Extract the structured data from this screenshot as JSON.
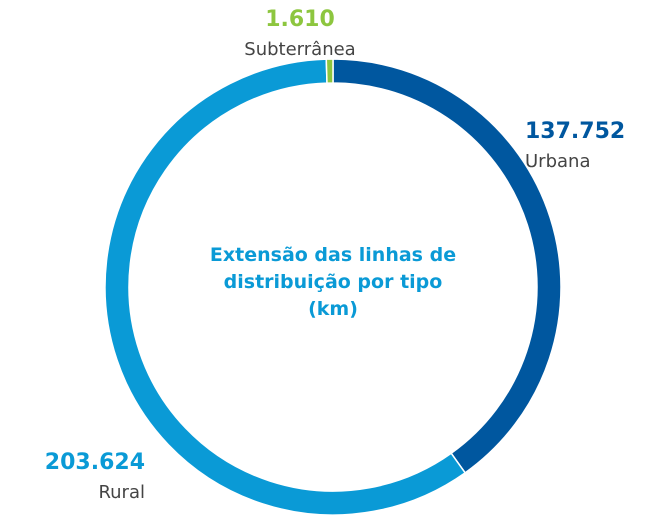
{
  "chart_data": {
    "type": "donut",
    "title": "Extensão das linhas de distribuição por tipo (km)",
    "categories": [
      "Urbana",
      "Rural",
      "Subterrânea"
    ],
    "values": [
      137752,
      203624,
      1610
    ],
    "value_labels": [
      "137.752",
      "203.624",
      "1.610"
    ],
    "colors": [
      "#00579f",
      "#0a9ad6",
      "#8dc63f"
    ]
  }
}
